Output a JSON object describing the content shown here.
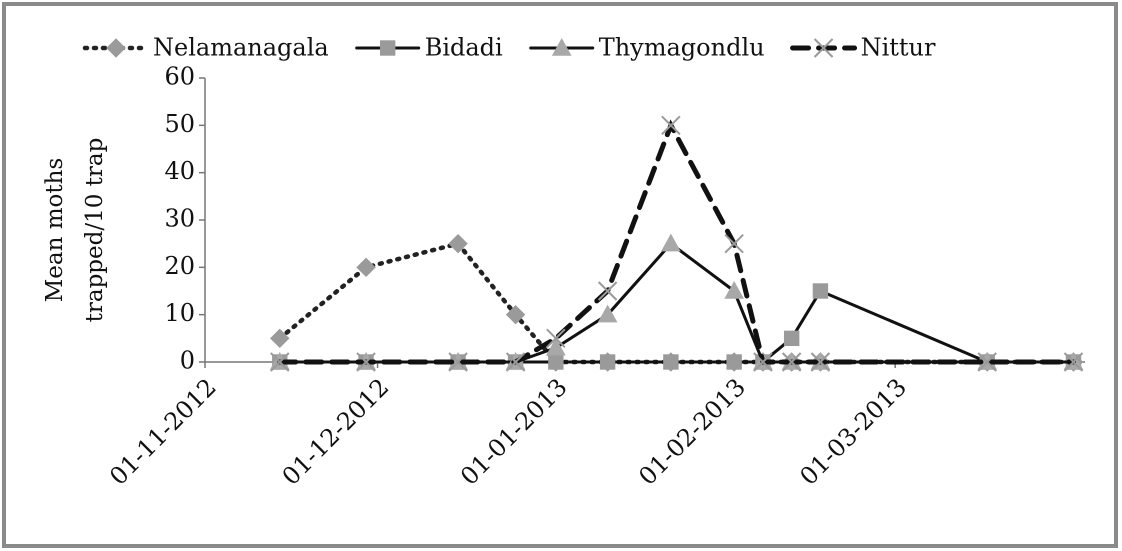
{
  "chart_data": {
    "type": "line",
    "y_label": "Mean moths trapped/10 trap",
    "x": [
      "14-11-2012",
      "29-11-2012",
      "15-12-2012",
      "25-12-2012",
      "01-01-2013",
      "10-01-2013",
      "21-01-2013",
      "01-02-2013",
      "06-02-2013",
      "11-02-2013",
      "16-02-2013",
      "17-03-2013",
      "01-04-2013"
    ],
    "xlim": [
      "01-11-2012",
      "03-04-2013"
    ],
    "xticks": [
      "01-11-2012",
      "01-12-2012",
      "01-01-2013",
      "01-02-2013",
      "01-03-2013"
    ],
    "ylim": [
      0,
      60
    ],
    "yticks": [
      0,
      10,
      20,
      30,
      40,
      50,
      60
    ],
    "grid": false,
    "legend": "top",
    "series": [
      {
        "name": "Nelamanagala",
        "color": "#222222",
        "marker_color": "#9a9a9a",
        "marker": "diamond",
        "dash": "dotted",
        "values": [
          5,
          20,
          25,
          10,
          0,
          0,
          0,
          0,
          0,
          0,
          0,
          0,
          0
        ]
      },
      {
        "name": "Bidadi",
        "color": "#111111",
        "marker_color": "#9a9a9a",
        "marker": "square",
        "dash": "solid",
        "values": [
          0,
          0,
          0,
          0,
          0,
          0,
          0,
          0,
          0,
          5,
          15,
          0,
          0
        ]
      },
      {
        "name": "Thymagondlu",
        "color": "#111111",
        "marker_color": "#a8a8a8",
        "marker": "triangle",
        "dash": "solid",
        "values": [
          0,
          0,
          0,
          0,
          3,
          10,
          25,
          15,
          0,
          0,
          0,
          0,
          0
        ]
      },
      {
        "name": "Nittur",
        "color": "#111111",
        "marker_color": "#9a9a9a",
        "marker": "x",
        "dash": "dashed",
        "values": [
          0,
          0,
          0,
          0,
          5,
          15,
          50,
          25,
          0,
          0,
          0,
          0,
          0
        ]
      }
    ]
  }
}
